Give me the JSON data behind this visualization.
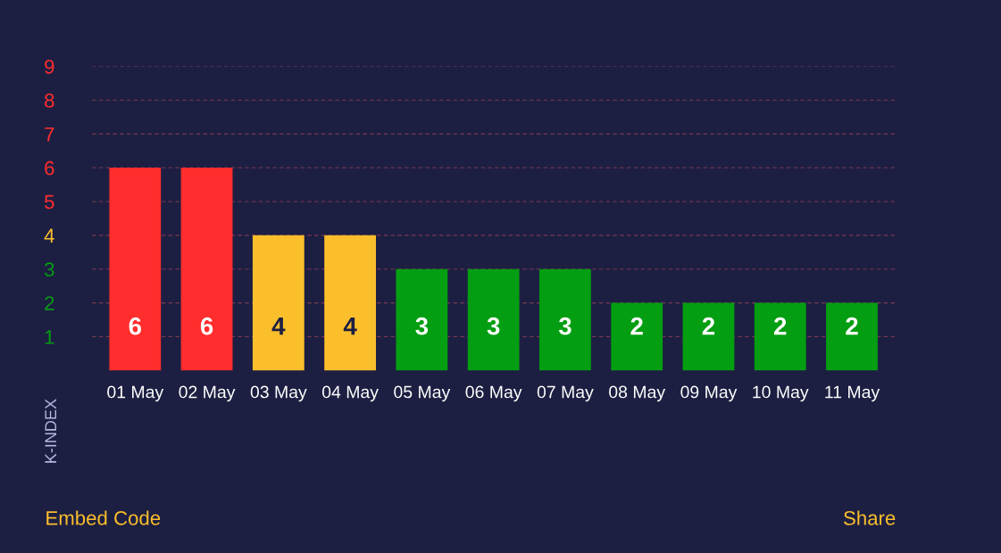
{
  "chart_data": {
    "type": "bar",
    "ylabel": "K-INDEX",
    "categories": [
      "01 May",
      "02 May",
      "03 May",
      "04 May",
      "05 May",
      "06 May",
      "07 May",
      "08 May",
      "09 May",
      "10 May",
      "11 May"
    ],
    "values": [
      6,
      6,
      4,
      4,
      3,
      3,
      3,
      2,
      2,
      2,
      2
    ],
    "colors": [
      "#ff2d2d",
      "#ff2d2d",
      "#fbbf2c",
      "#fbbf2c",
      "#039e11",
      "#039e11",
      "#039e11",
      "#039e11",
      "#039e11",
      "#039e11",
      "#039e11"
    ],
    "ylim": [
      0,
      9
    ],
    "yticks": [
      1,
      2,
      3,
      4,
      5,
      6,
      7,
      8,
      9
    ],
    "grid": "y",
    "data_labels": true,
    "annotations": [
      "Embed Code",
      "Share"
    ]
  }
}
